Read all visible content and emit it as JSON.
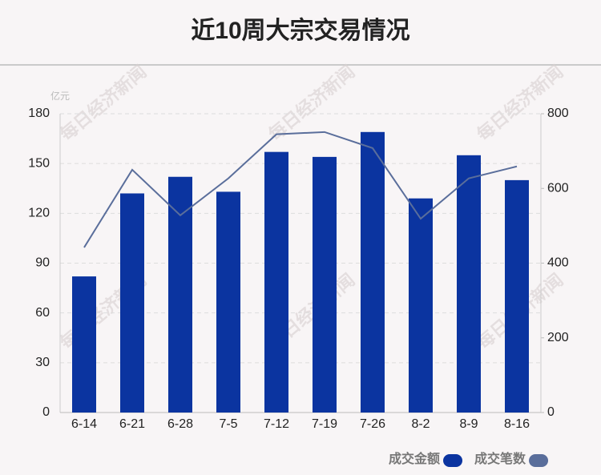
{
  "chart_data": {
    "type": "bar",
    "title": "近10周大宗交易情况",
    "y_unit": "亿元",
    "watermark": "每日经济新闻",
    "categories": [
      "6-14",
      "6-21",
      "6-28",
      "7-5",
      "7-12",
      "7-19",
      "7-26",
      "8-2",
      "8-9",
      "8-16"
    ],
    "series": [
      {
        "name": "成交金额",
        "type": "bar",
        "color": "#0b34a0",
        "values": [
          82,
          132,
          142,
          133,
          157,
          154,
          169,
          129,
          155,
          140
        ]
      },
      {
        "name": "成交笔数",
        "type": "line",
        "axis": "y2",
        "color": "#5a6e9b",
        "values": [
          442,
          650,
          528,
          627,
          745,
          751,
          708,
          519,
          627,
          659
        ]
      }
    ],
    "ylim": [
      0,
      180
    ],
    "yticks": [
      0,
      30,
      60,
      90,
      120,
      150,
      180
    ],
    "y2lim": [
      0,
      800
    ],
    "y2ticks": [
      0,
      200,
      400,
      600,
      800
    ],
    "grid": true
  }
}
